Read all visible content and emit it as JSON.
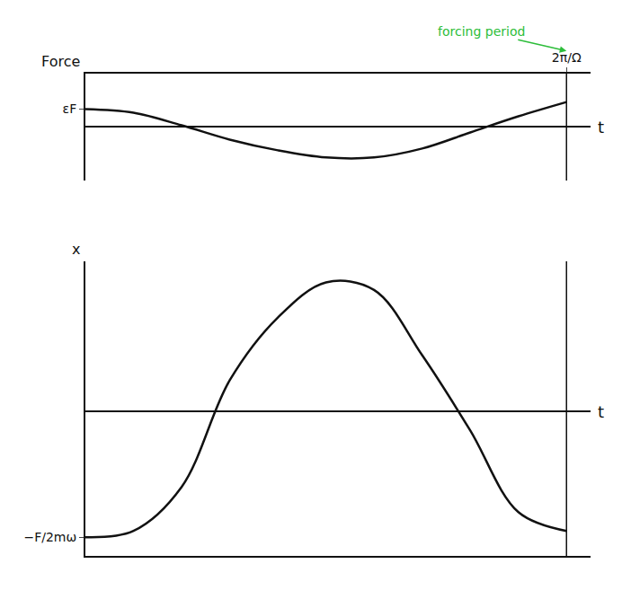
{
  "chart_data": [
    {
      "type": "line",
      "y_label": "Force",
      "x_label": "t",
      "x": [
        0,
        0.1,
        0.2,
        0.3,
        0.4,
        0.5,
        0.6,
        0.7,
        0.8,
        0.9,
        1
      ],
      "values": [
        1.0,
        0.8,
        0.1,
        -0.7,
        -1.3,
        -1.7,
        -1.7,
        -1.2,
        -0.3,
        0.6,
        1.4
      ],
      "color": "#111111",
      "grid": false,
      "xlim": [
        0,
        1.05
      ],
      "ylim": [
        -3,
        3
      ],
      "xticks": [
        {
          "value": 1,
          "label": "2π/Ω"
        }
      ],
      "yticks": [
        {
          "value": 1,
          "label": "εF"
        }
      ],
      "annotations": [
        {
          "text": "forcing period",
          "x": 1,
          "color": "#2dbd3a"
        }
      ]
    },
    {
      "type": "line",
      "y_label": "x",
      "x_label": "t",
      "x": [
        0,
        0.1,
        0.2,
        0.3,
        0.4,
        0.5,
        0.6,
        0.7,
        0.8,
        0.9,
        1
      ],
      "values": [
        -1.0,
        -0.95,
        -0.6,
        0.25,
        0.75,
        1.03,
        0.97,
        0.45,
        -0.15,
        -0.8,
        -0.95
      ],
      "color": "#111111",
      "grid": false,
      "xlim": [
        0,
        1.05
      ],
      "ylim": [
        -1.15,
        1.2
      ],
      "xticks": [],
      "yticks": [
        {
          "value": -1,
          "label": "−F/2mω"
        }
      ]
    }
  ]
}
